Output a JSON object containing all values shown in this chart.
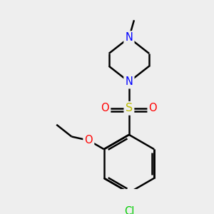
{
  "bg_color": "#eeeeee",
  "atom_colors": {
    "C": "#000000",
    "N": "#0000ff",
    "O": "#ff0000",
    "S": "#bbbb00",
    "Cl": "#00cc00"
  },
  "bond_color": "#000000",
  "bond_width": 1.8,
  "font_size_atom": 10.5,
  "fig_bg": "#eeeeee"
}
